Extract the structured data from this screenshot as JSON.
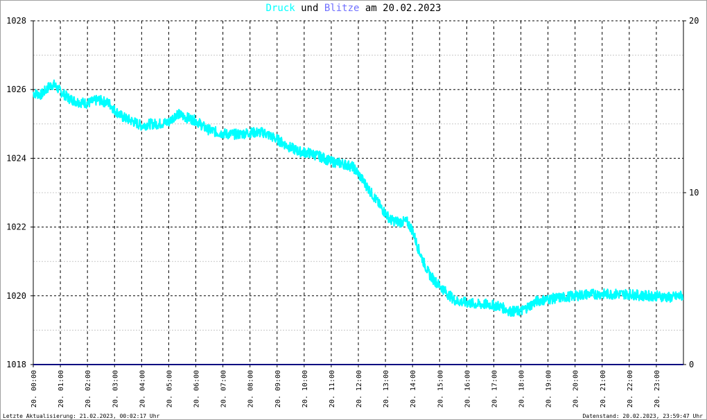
{
  "title": {
    "druck": "Druck",
    "und": "und",
    "blitze": "Blitze",
    "am": "am",
    "date": "20.02.2023"
  },
  "colors": {
    "druck": "#00ffff",
    "blitze": "#7070ff",
    "blitze_line": "#000080",
    "grid": "#000000",
    "grid_minor": "#c8c8c8"
  },
  "footer": {
    "left": "Letzte Aktualisierung: 21.02.2023, 00:02:17 Uhr",
    "right": "Datenstand: 20.02.2023, 23:59:47 Uhr"
  },
  "chart_data": {
    "type": "line",
    "title": "Druck und Blitze am 20.02.2023",
    "grid": true,
    "x_tick_labels": [
      "20. 00:00",
      "20. 01:00",
      "20. 02:00",
      "20. 03:00",
      "20. 04:00",
      "20. 05:00",
      "20. 06:00",
      "20. 07:00",
      "20. 08:00",
      "20. 09:00",
      "20. 10:00",
      "20. 11:00",
      "20. 12:00",
      "20. 13:00",
      "20. 14:00",
      "20. 15:00",
      "20. 16:00",
      "20. 17:00",
      "20. 18:00",
      "20. 19:00",
      "20. 20:00",
      "20. 21:00",
      "20. 22:00",
      "20. 23:00"
    ],
    "y_left": {
      "range": [
        1018,
        1028
      ],
      "ticks": [
        1018,
        1020,
        1022,
        1024,
        1026,
        1028
      ]
    },
    "y_right": {
      "range": [
        0,
        20
      ],
      "ticks": [
        0,
        10,
        20
      ]
    },
    "x_range_hours": [
      0,
      24
    ],
    "series": [
      {
        "name": "Druck",
        "axis": "left",
        "x_hours": [
          0,
          0.3,
          0.6,
          0.75,
          1.0,
          1.3,
          1.6,
          2.0,
          2.4,
          2.8,
          3.0,
          3.3,
          3.6,
          4.0,
          4.3,
          4.6,
          5.0,
          5.3,
          5.6,
          6.0,
          6.4,
          6.8,
          7.2,
          7.6,
          8.0,
          8.5,
          9.0,
          9.4,
          9.8,
          10.2,
          10.6,
          11.0,
          11.4,
          11.8,
          12.0,
          12.3,
          12.6,
          12.9,
          13.2,
          13.5,
          13.8,
          14.0,
          14.2,
          14.4,
          14.6,
          14.8,
          15.0,
          15.3,
          15.6,
          16.0,
          16.4,
          16.8,
          17.2,
          17.6,
          18.0,
          18.3,
          18.6,
          19.0,
          19.5,
          20.0,
          20.5,
          21.0,
          21.5,
          22.0,
          22.5,
          23.0,
          23.5,
          23.95
        ],
        "values": [
          1025.9,
          1025.85,
          1026.1,
          1026.15,
          1025.95,
          1025.75,
          1025.65,
          1025.6,
          1025.7,
          1025.6,
          1025.4,
          1025.2,
          1025.1,
          1024.95,
          1025.0,
          1025.0,
          1025.05,
          1025.3,
          1025.2,
          1025.1,
          1024.85,
          1024.75,
          1024.7,
          1024.7,
          1024.75,
          1024.75,
          1024.55,
          1024.35,
          1024.2,
          1024.15,
          1024.05,
          1023.9,
          1023.85,
          1023.75,
          1023.55,
          1023.2,
          1022.85,
          1022.5,
          1022.2,
          1022.15,
          1022.15,
          1021.9,
          1021.4,
          1021.0,
          1020.65,
          1020.45,
          1020.3,
          1020.05,
          1019.85,
          1019.8,
          1019.75,
          1019.75,
          1019.7,
          1019.55,
          1019.55,
          1019.7,
          1019.85,
          1019.9,
          1019.95,
          1020.0,
          1020.05,
          1020.05,
          1020.05,
          1020.05,
          1020.0,
          1020.0,
          1019.95,
          1020.0
        ]
      },
      {
        "name": "Blitze",
        "axis": "right",
        "x_hours": [
          0,
          24
        ],
        "values": [
          0,
          0
        ]
      }
    ]
  }
}
